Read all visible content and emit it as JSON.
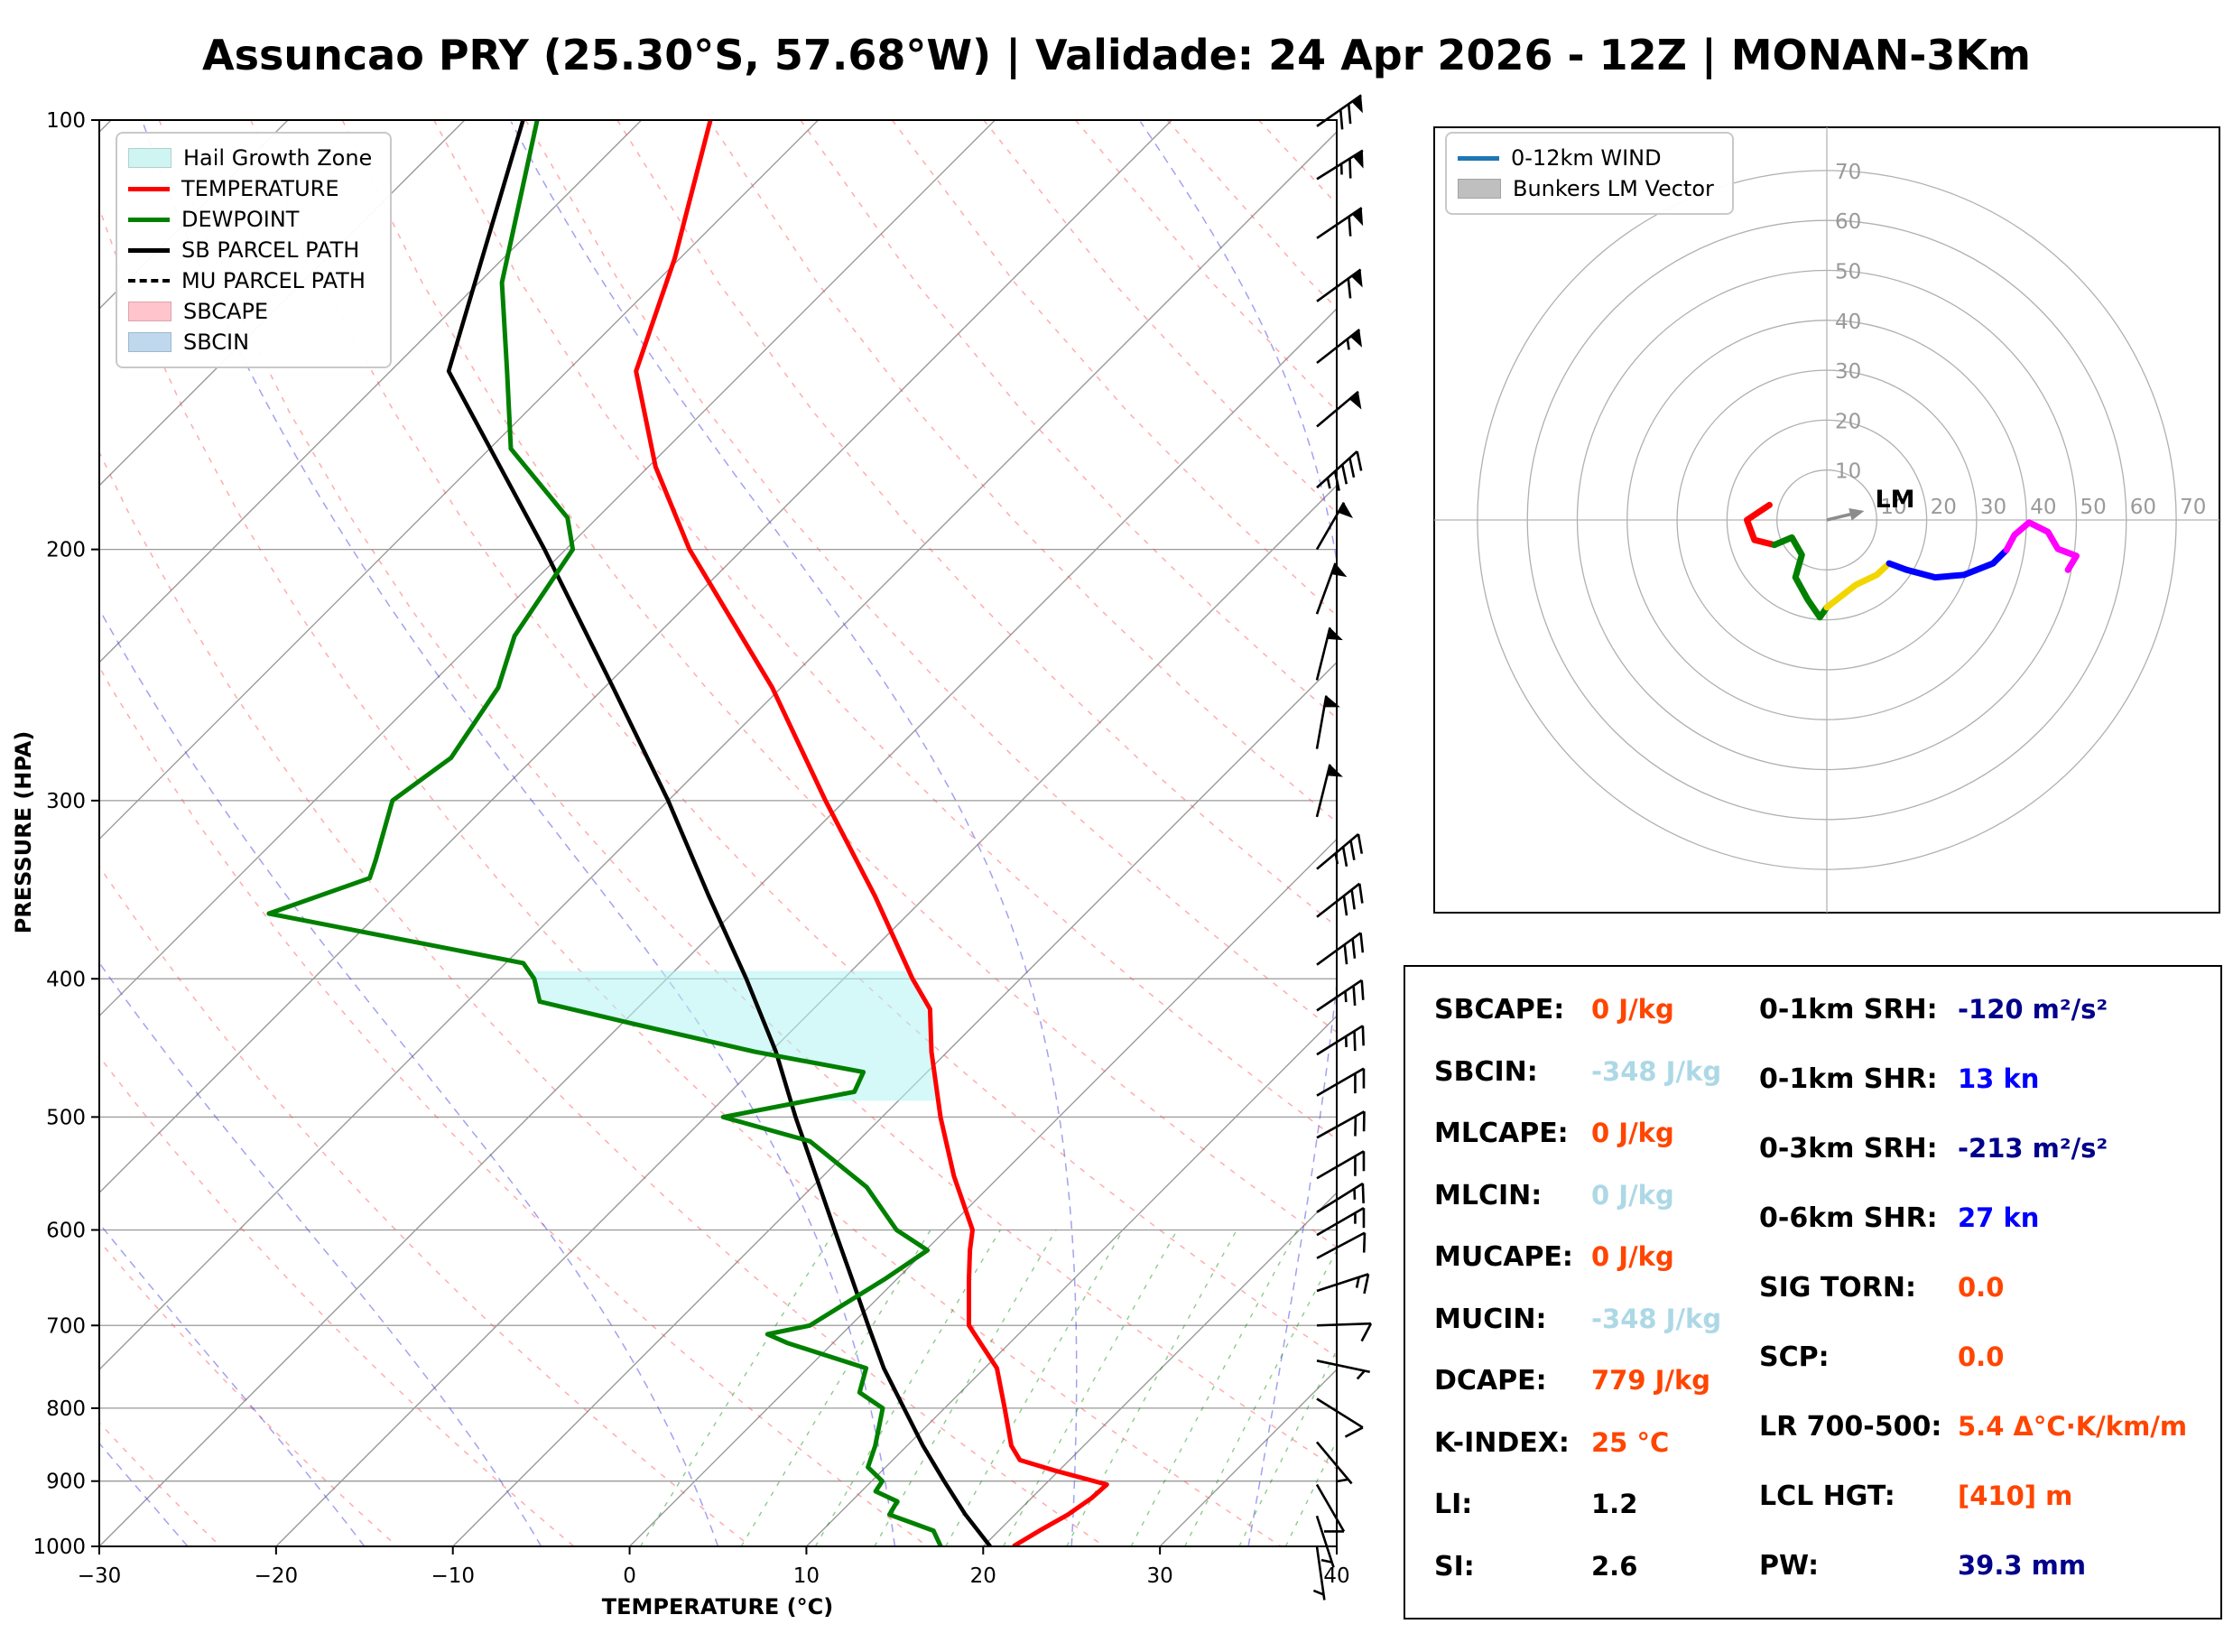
{
  "title": "Assuncao PRY (25.30°S, 57.68°W) | Validade: 24 Apr 2026 - 12Z | MONAN-3Km",
  "chart_data": {
    "type": "line",
    "subtype": "skew-t log-p thermodynamic sounding with hodograph and severe-weather indices",
    "skewt": {
      "xlabel": "TEMPERATURE (°C)",
      "ylabel": "PRESSURE (HPA)",
      "xlim": [
        -30,
        40
      ],
      "plim": [
        100,
        1000
      ],
      "x_ticks": [
        -30,
        -20,
        -10,
        0,
        10,
        20,
        30,
        40
      ],
      "p_ticks": [
        100,
        200,
        300,
        400,
        500,
        600,
        700,
        800,
        900,
        1000
      ],
      "grid": true,
      "legend": [
        {
          "label": "Hail Growth Zone",
          "swatch": "patch",
          "color": "#CFF5F3"
        },
        {
          "label": "TEMPERATURE",
          "swatch": "line",
          "color": "#FF0000"
        },
        {
          "label": "DEWPOINT",
          "swatch": "line",
          "color": "#008000"
        },
        {
          "label": "SB PARCEL PATH",
          "swatch": "line",
          "color": "#000000"
        },
        {
          "label": "MU PARCEL PATH",
          "swatch": "dash",
          "color": "#000000"
        },
        {
          "label": "SBCAPE",
          "swatch": "patch",
          "color": "#FFC4CC"
        },
        {
          "label": "SBCIN",
          "swatch": "patch",
          "color": "#BFD8EE"
        }
      ],
      "temperature_profile": [
        [
          1000,
          21.7
        ],
        [
          975,
          22.3
        ],
        [
          950,
          23.0
        ],
        [
          925,
          23.4
        ],
        [
          905,
          23.5
        ],
        [
          885,
          19.8
        ],
        [
          870,
          17.2
        ],
        [
          850,
          15.9
        ],
        [
          800,
          13.4
        ],
        [
          750,
          10.7
        ],
        [
          700,
          6.7
        ],
        [
          650,
          4.1
        ],
        [
          620,
          2.5
        ],
        [
          600,
          1.5
        ],
        [
          550,
          -2.6
        ],
        [
          500,
          -6.7
        ],
        [
          450,
          -10.9
        ],
        [
          420,
          -13.4
        ],
        [
          400,
          -16.1
        ],
        [
          350,
          -22.9
        ],
        [
          300,
          -31.1
        ],
        [
          250,
          -40.5
        ],
        [
          200,
          -53.0
        ],
        [
          175,
          -59.6
        ],
        [
          150,
          -66.1
        ],
        [
          125,
          -70.3
        ],
        [
          100,
          -76.1
        ]
      ],
      "dewpoint_profile": [
        [
          1000,
          17.6
        ],
        [
          975,
          16.3
        ],
        [
          950,
          12.9
        ],
        [
          930,
          12.6
        ],
        [
          915,
          10.8
        ],
        [
          900,
          10.6
        ],
        [
          880,
          9.0
        ],
        [
          850,
          8.2
        ],
        [
          800,
          6.5
        ],
        [
          780,
          4.3
        ],
        [
          750,
          3.3
        ],
        [
          720,
          -2.6
        ],
        [
          710,
          -4.2
        ],
        [
          700,
          -2.3
        ],
        [
          650,
          -0.7
        ],
        [
          620,
          0.1
        ],
        [
          600,
          -2.8
        ],
        [
          560,
          -6.9
        ],
        [
          520,
          -12.7
        ],
        [
          500,
          -19.0
        ],
        [
          480,
          -13.0
        ],
        [
          465,
          -13.6
        ],
        [
          450,
          -20.9
        ],
        [
          430,
          -29.4
        ],
        [
          415,
          -35.9
        ],
        [
          400,
          -37.5
        ],
        [
          390,
          -39.0
        ],
        [
          360,
          -56.2
        ],
        [
          340,
          -52.5
        ],
        [
          330,
          -53.2
        ],
        [
          300,
          -55.6
        ],
        [
          280,
          -54.7
        ],
        [
          250,
          -56.0
        ],
        [
          230,
          -58.0
        ],
        [
          200,
          -59.6
        ],
        [
          190,
          -61.7
        ],
        [
          170,
          -68.8
        ],
        [
          150,
          -73.4
        ],
        [
          130,
          -78.7
        ],
        [
          100,
          -85.9
        ]
      ],
      "sb_parcel_profile": [
        [
          1000,
          20.4
        ],
        [
          950,
          17.2
        ],
        [
          900,
          14.1
        ],
        [
          850,
          10.9
        ],
        [
          800,
          7.7
        ],
        [
          750,
          4.3
        ],
        [
          700,
          1.0
        ],
        [
          650,
          -2.5
        ],
        [
          600,
          -6.3
        ],
        [
          550,
          -10.4
        ],
        [
          500,
          -14.9
        ],
        [
          450,
          -19.7
        ],
        [
          400,
          -25.5
        ],
        [
          350,
          -32.3
        ],
        [
          300,
          -40.0
        ],
        [
          250,
          -49.5
        ],
        [
          200,
          -61.2
        ],
        [
          150,
          -76.7
        ],
        [
          100,
          -86.7
        ]
      ],
      "mu_parcel_same_as_sb": true,
      "hail_zone_pressure_range": [
        395,
        487
      ],
      "wind_barbs": [
        {
          "p": 101,
          "dir_angle_deg": 55,
          "pennants": 1,
          "full_barbs": 2,
          "half_barbs": 0,
          "speed_kn": 70
        },
        {
          "p": 110,
          "dir_angle_deg": 58,
          "pennants": 1,
          "full_barbs": 1,
          "half_barbs": 1,
          "speed_kn": 65
        },
        {
          "p": 121,
          "dir_angle_deg": 56,
          "pennants": 1,
          "full_barbs": 1,
          "half_barbs": 0,
          "speed_kn": 60
        },
        {
          "p": 134,
          "dir_angle_deg": 54,
          "pennants": 1,
          "full_barbs": 1,
          "half_barbs": 0,
          "speed_kn": 60
        },
        {
          "p": 148,
          "dir_angle_deg": 52,
          "pennants": 1,
          "full_barbs": 0,
          "half_barbs": 1,
          "speed_kn": 55
        },
        {
          "p": 164,
          "dir_angle_deg": 50,
          "pennants": 1,
          "full_barbs": 0,
          "half_barbs": 0,
          "speed_kn": 50
        },
        {
          "p": 181,
          "dir_angle_deg": 48,
          "pennants": 0,
          "full_barbs": 4,
          "half_barbs": 1,
          "speed_kn": 45
        },
        {
          "p": 200,
          "dir_angle_deg": 30,
          "pennants": 1,
          "full_barbs": 0,
          "half_barbs": 0,
          "speed_kn": 50
        },
        {
          "p": 222,
          "dir_angle_deg": 20,
          "pennants": 1,
          "full_barbs": 0,
          "half_barbs": 0,
          "speed_kn": 50
        },
        {
          "p": 247,
          "dir_angle_deg": 14,
          "pennants": 1,
          "full_barbs": 0,
          "half_barbs": 0,
          "speed_kn": 50
        },
        {
          "p": 276,
          "dir_angle_deg": 10,
          "pennants": 1,
          "full_barbs": 0,
          "half_barbs": 0,
          "speed_kn": 50
        },
        {
          "p": 308,
          "dir_angle_deg": 14,
          "pennants": 1,
          "full_barbs": 0,
          "half_barbs": 0,
          "speed_kn": 50
        },
        {
          "p": 335,
          "dir_angle_deg": 50,
          "pennants": 0,
          "full_barbs": 3,
          "half_barbs": 1,
          "speed_kn": 35
        },
        {
          "p": 362,
          "dir_angle_deg": 52,
          "pennants": 0,
          "full_barbs": 3,
          "half_barbs": 0,
          "speed_kn": 30
        },
        {
          "p": 391,
          "dir_angle_deg": 54,
          "pennants": 0,
          "full_barbs": 3,
          "half_barbs": 0,
          "speed_kn": 30
        },
        {
          "p": 421,
          "dir_angle_deg": 56,
          "pennants": 0,
          "full_barbs": 2,
          "half_barbs": 1,
          "speed_kn": 25
        },
        {
          "p": 452,
          "dir_angle_deg": 58,
          "pennants": 0,
          "full_barbs": 2,
          "half_barbs": 1,
          "speed_kn": 25
        },
        {
          "p": 483,
          "dir_angle_deg": 60,
          "pennants": 0,
          "full_barbs": 2,
          "half_barbs": 0,
          "speed_kn": 20
        },
        {
          "p": 517,
          "dir_angle_deg": 61,
          "pennants": 0,
          "full_barbs": 2,
          "half_barbs": 0,
          "speed_kn": 20
        },
        {
          "p": 552,
          "dir_angle_deg": 60,
          "pennants": 0,
          "full_barbs": 2,
          "half_barbs": 0,
          "speed_kn": 20
        },
        {
          "p": 583,
          "dir_angle_deg": 58,
          "pennants": 0,
          "full_barbs": 1,
          "half_barbs": 1,
          "speed_kn": 15
        },
        {
          "p": 605,
          "dir_angle_deg": 60,
          "pennants": 0,
          "full_barbs": 1,
          "half_barbs": 1,
          "speed_kn": 15
        },
        {
          "p": 628,
          "dir_angle_deg": 62,
          "pennants": 0,
          "full_barbs": 1,
          "half_barbs": 0,
          "speed_kn": 10
        },
        {
          "p": 662,
          "dir_angle_deg": 72,
          "pennants": 0,
          "full_barbs": 1,
          "half_barbs": 1,
          "speed_kn": 15
        },
        {
          "p": 700,
          "dir_angle_deg": 88,
          "pennants": 0,
          "full_barbs": 1,
          "half_barbs": 0,
          "speed_kn": 10
        },
        {
          "p": 741,
          "dir_angle_deg": 102,
          "pennants": 0,
          "full_barbs": 0,
          "half_barbs": 1,
          "speed_kn": 5
        },
        {
          "p": 788,
          "dir_angle_deg": 122,
          "pennants": 0,
          "full_barbs": 1,
          "half_barbs": 0,
          "speed_kn": 10
        },
        {
          "p": 845,
          "dir_angle_deg": 140,
          "pennants": 0,
          "full_barbs": 0,
          "half_barbs": 1,
          "speed_kn": 5
        },
        {
          "p": 905,
          "dir_angle_deg": 150,
          "pennants": 0,
          "full_barbs": 1,
          "half_barbs": 0,
          "speed_kn": 10
        },
        {
          "p": 952,
          "dir_angle_deg": 162,
          "pennants": 0,
          "full_barbs": 0,
          "half_barbs": 1,
          "speed_kn": 5
        },
        {
          "p": 1000,
          "dir_angle_deg": 172,
          "pennants": 0,
          "full_barbs": 0,
          "half_barbs": 1,
          "speed_kn": 5
        }
      ]
    },
    "hodograph": {
      "units": "kn",
      "rings": [
        10,
        20,
        30,
        40,
        50,
        60,
        70
      ],
      "legend": [
        {
          "label": "0-12km WIND",
          "swatch": "line",
          "color": "#1f77b4"
        },
        {
          "label": "Bunkers LM Vector",
          "swatch": "patch",
          "color": "#bfbfbf"
        }
      ],
      "lm_label": "LM",
      "lm_vector_kn": [
        7.5,
        1.8
      ],
      "segments": [
        {
          "color": "red",
          "points": [
            [
              -11.5,
              3
            ],
            [
              -16,
              0
            ],
            [
              -14.5,
              -4
            ],
            [
              -10.5,
              -5
            ]
          ]
        },
        {
          "color": "green",
          "points": [
            [
              -10.5,
              -5
            ],
            [
              -7,
              -3.5
            ],
            [
              -5,
              -7
            ],
            [
              -6.3,
              -11.5
            ],
            [
              -3.8,
              -16
            ],
            [
              -1.4,
              -19.5
            ],
            [
              0,
              -17.5
            ]
          ]
        },
        {
          "color": "#f2d600",
          "points": [
            [
              0,
              -17.5
            ],
            [
              5.8,
              -13
            ],
            [
              10,
              -11
            ],
            [
              12.5,
              -8.7
            ]
          ]
        },
        {
          "color": "blue",
          "points": [
            [
              12.5,
              -8.7
            ],
            [
              16,
              -10
            ],
            [
              21.7,
              -11.5
            ],
            [
              27.5,
              -11
            ],
            [
              33.3,
              -8.7
            ],
            [
              36,
              -6
            ]
          ]
        },
        {
          "color": "magenta",
          "points": [
            [
              36,
              -6
            ],
            [
              37.6,
              -3
            ],
            [
              40.5,
              -0.5
            ],
            [
              44.3,
              -2.4
            ],
            [
              46.3,
              -5.8
            ],
            [
              50,
              -7.2
            ],
            [
              48.3,
              -10
            ]
          ]
        }
      ]
    }
  },
  "indices": {
    "left": [
      {
        "label": "SBCAPE:",
        "value": "0 J/kg",
        "color": "#FF4500"
      },
      {
        "label": "SBCIN:",
        "value": "-348 J/kg",
        "color": "#ADD8E6"
      },
      {
        "label": "MLCAPE:",
        "value": "0 J/kg",
        "color": "#FF4500"
      },
      {
        "label": "MLCIN:",
        "value": "0 J/kg",
        "color": "#ADD8E6"
      },
      {
        "label": "MUCAPE:",
        "value": "0 J/kg",
        "color": "#FF4500"
      },
      {
        "label": "MUCIN:",
        "value": "-348 J/kg",
        "color": "#ADD8E6"
      },
      {
        "label": "DCAPE:",
        "value": "779 J/kg",
        "color": "#FF4500"
      },
      {
        "label": "K-INDEX:",
        "value": "25 °C",
        "color": "#FF4500"
      },
      {
        "label": "LI:",
        "value": "1.2",
        "color": "#000000"
      },
      {
        "label": "SI:",
        "value": "2.6",
        "color": "#000000"
      }
    ],
    "right": [
      {
        "label": "0-1km SRH:",
        "value": "-120 m²/s²",
        "color": "#00008B"
      },
      {
        "label": "0-1km SHR:",
        "value": "13 kn",
        "color": "#0000FF"
      },
      {
        "label": "0-3km SRH:",
        "value": "-213 m²/s²",
        "color": "#00008B"
      },
      {
        "label": "0-6km SHR:",
        "value": "27 kn",
        "color": "#0000FF"
      },
      {
        "label": "SIG TORN:",
        "value": "0.0",
        "color": "#FF4500"
      },
      {
        "label": "SCP:",
        "value": "0.0",
        "color": "#FF4500"
      },
      {
        "label": "LR 700-500:",
        "value": "5.4 Δ°C·K/km/m",
        "color": "#FF4500"
      },
      {
        "label": "LCL HGT:",
        "value": "[410] m",
        "color": "#FF4500"
      },
      {
        "label": "PW:",
        "value": "39.3 mm",
        "color": "#00008B"
      }
    ]
  }
}
